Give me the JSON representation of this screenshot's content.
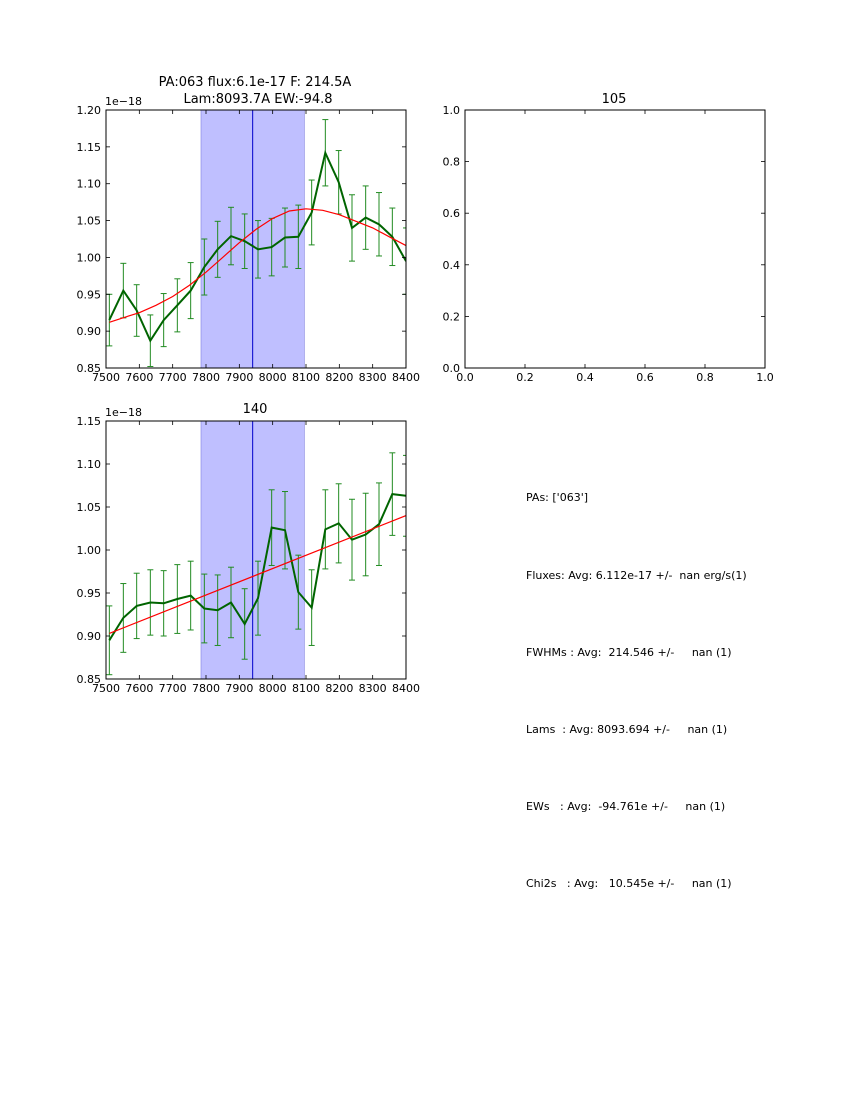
{
  "colors": {
    "data": "#006400",
    "errbar": "#228b22",
    "fit": "#ff0000",
    "band": "#bfbfff",
    "center": "#0000cc"
  },
  "chart_data": [
    {
      "type": "line",
      "title_line1": "PA:063 flux:6.1e-17 F: 214.5A",
      "title_line2": "Lam:8093.7A EW:-94.8",
      "offset_label": "1e−18",
      "xlim": [
        7500,
        8400
      ],
      "ylim": [
        0.85,
        1.2
      ],
      "xticks": [
        7500,
        7600,
        7700,
        7800,
        7900,
        8000,
        8100,
        8200,
        8300,
        8400
      ],
      "yticks": [
        0.85,
        0.9,
        0.95,
        1.0,
        1.05,
        1.1,
        1.15,
        1.2
      ],
      "yticklabels": [
        "0.85",
        "0.90",
        "0.95",
        "1.00",
        "1.05",
        "1.10",
        "1.15",
        "1.20"
      ],
      "band": [
        7785,
        8095
      ],
      "center_line": 7940,
      "series": [
        {
          "name": "spectrum",
          "x": [
            7510,
            7552,
            7592,
            7633,
            7673,
            7714,
            7754,
            7795,
            7835,
            7875,
            7916,
            7956,
            7997,
            8037,
            8077,
            8117,
            8158,
            8198,
            8238,
            8279,
            8319,
            8359,
            8400
          ],
          "y": [
            0.915,
            0.955,
            0.928,
            0.887,
            0.915,
            0.935,
            0.955,
            0.987,
            1.011,
            1.029,
            1.022,
            1.011,
            1.014,
            1.027,
            1.028,
            1.061,
            1.142,
            1.102,
            1.04,
            1.054,
            1.045,
            1.028,
            0.995
          ],
          "err": [
            0.035,
            0.037,
            0.035,
            0.035,
            0.036,
            0.036,
            0.038,
            0.038,
            0.038,
            0.039,
            0.037,
            0.039,
            0.039,
            0.04,
            0.043,
            0.044,
            0.045,
            0.043,
            0.045,
            0.043,
            0.043,
            0.039,
            0.045
          ]
        },
        {
          "name": "fit",
          "x": [
            7510,
            7550,
            7600,
            7650,
            7700,
            7750,
            7800,
            7850,
            7900,
            7950,
            8000,
            8050,
            8100,
            8150,
            8200,
            8250,
            8300,
            8350,
            8400
          ],
          "y": [
            0.912,
            0.918,
            0.925,
            0.935,
            0.947,
            0.962,
            0.98,
            1.0,
            1.02,
            1.038,
            1.053,
            1.063,
            1.066,
            1.064,
            1.058,
            1.049,
            1.04,
            1.028,
            1.016
          ]
        }
      ]
    },
    {
      "type": "line",
      "title": "105",
      "xlim": [
        0.0,
        1.0
      ],
      "ylim": [
        0.0,
        1.0
      ],
      "xticks": [
        0.0,
        0.2,
        0.4,
        0.6,
        0.8,
        1.0
      ],
      "yticks": [
        0.0,
        0.2,
        0.4,
        0.6,
        0.8,
        1.0
      ],
      "xticklabels": [
        "0.0",
        "0.2",
        "0.4",
        "0.6",
        "0.8",
        "1.0"
      ],
      "yticklabels": [
        "0.0",
        "0.2",
        "0.4",
        "0.6",
        "0.8",
        "1.0"
      ],
      "series": []
    },
    {
      "type": "line",
      "title": "140",
      "offset_label": "1e−18",
      "xlim": [
        7500,
        8400
      ],
      "ylim": [
        0.85,
        1.15
      ],
      "xticks": [
        7500,
        7600,
        7700,
        7800,
        7900,
        8000,
        8100,
        8200,
        8300,
        8400
      ],
      "yticks": [
        0.85,
        0.9,
        0.95,
        1.0,
        1.05,
        1.1,
        1.15
      ],
      "yticklabels": [
        "0.85",
        "0.90",
        "0.95",
        "1.00",
        "1.05",
        "1.10",
        "1.15"
      ],
      "band": [
        7785,
        8095
      ],
      "center_line": 7940,
      "series": [
        {
          "name": "spectrum",
          "x": [
            7510,
            7552,
            7592,
            7633,
            7673,
            7714,
            7754,
            7795,
            7835,
            7875,
            7916,
            7956,
            7997,
            8037,
            8077,
            8117,
            8158,
            8198,
            8238,
            8279,
            8319,
            8359,
            8400
          ],
          "y": [
            0.895,
            0.921,
            0.935,
            0.939,
            0.938,
            0.943,
            0.947,
            0.932,
            0.93,
            0.939,
            0.914,
            0.944,
            1.026,
            1.023,
            0.951,
            0.933,
            1.024,
            1.031,
            1.012,
            1.018,
            1.03,
            1.065,
            1.063
          ],
          "err": [
            0.04,
            0.04,
            0.038,
            0.038,
            0.038,
            0.04,
            0.04,
            0.04,
            0.041,
            0.041,
            0.041,
            0.043,
            0.044,
            0.045,
            0.043,
            0.044,
            0.046,
            0.046,
            0.047,
            0.048,
            0.048,
            0.048,
            0.047
          ]
        },
        {
          "name": "fit",
          "x": [
            7510,
            8400
          ],
          "y": [
            0.903,
            1.04
          ]
        }
      ]
    }
  ],
  "summary": {
    "pas": "PAs: ['063']",
    "fluxes": "Fluxes: Avg: 6.112e-17 +/-  nan erg/s(1)",
    "fwhms": "FWHMs : Avg:  214.546 +/-     nan (1)",
    "lams": "Lams  : Avg: 8093.694 +/-     nan (1)",
    "ews": "EWs   : Avg:  -94.761e +/-     nan (1)",
    "chi2s": "Chi2s   : Avg:   10.545e +/-     nan (1)"
  }
}
